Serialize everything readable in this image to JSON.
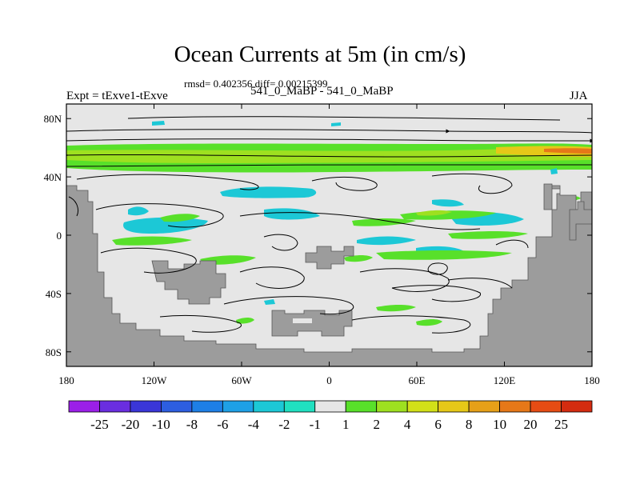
{
  "chart_data": {
    "type": "heatmap",
    "title": "Ocean Currents at 5m (in cm/s)",
    "stats_line": "rmsd= 0.402356 diff= 0.00215399",
    "left_label": "Expt = tExve1-tExve",
    "center_label": "541_0_MaBP - 541_0_MaBP",
    "right_label": "JJA",
    "units": "cm/s",
    "x_ticks": [
      "180",
      "120W",
      "60W",
      "0",
      "60E",
      "120E",
      "180"
    ],
    "x_tick_values": [
      -180,
      -120,
      -60,
      0,
      60,
      120,
      180
    ],
    "y_ticks": [
      "80N",
      "40N",
      "0",
      "40S",
      "80S"
    ],
    "y_tick_values": [
      80,
      40,
      0,
      -40,
      -80
    ],
    "xlim": [
      -180,
      180
    ],
    "ylim": [
      -90,
      90
    ],
    "colorbar": {
      "labels": [
        "-25",
        "-20",
        "-10",
        "-8",
        "-6",
        "-4",
        "-2",
        "-1",
        "1",
        "2",
        "4",
        "6",
        "8",
        "10",
        "20",
        "25"
      ],
      "colors": [
        "#9b1fe8",
        "#6a2ee0",
        "#3a36d8",
        "#2d5ee0",
        "#1e7fe6",
        "#1ea0e6",
        "#1cc8d6",
        "#20e0c0",
        "#e6e6e6",
        "#58e02a",
        "#9ee020",
        "#d2e018",
        "#e6c818",
        "#e6a018",
        "#e67818",
        "#e64c14",
        "#d42c10"
      ]
    },
    "land_color": "#9c9c9c",
    "ocean_color": "#e6e6e6"
  }
}
